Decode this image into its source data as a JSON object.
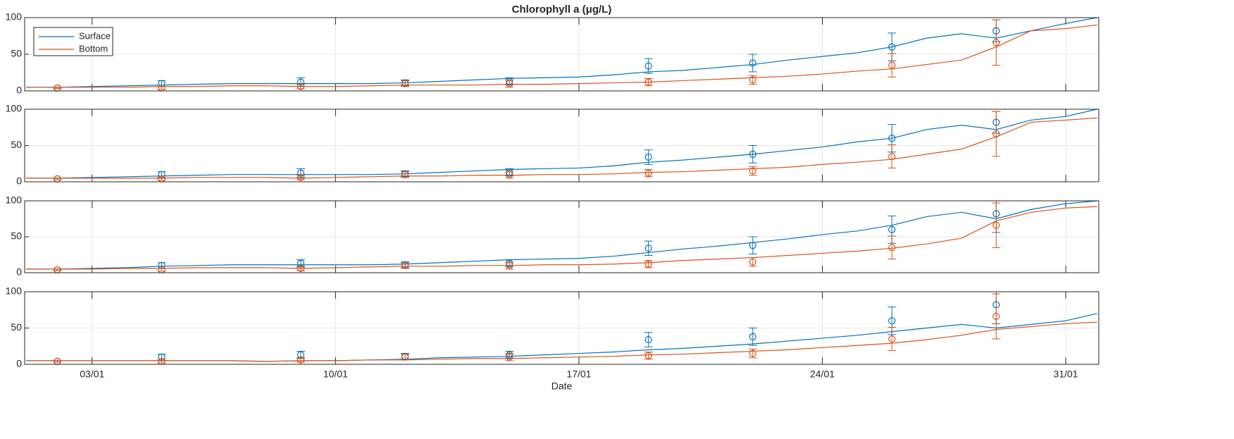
{
  "chart_data": [
    {
      "type": "line",
      "title": "Chlorophyll a (μg/L)",
      "legend": "upper left",
      "grid": true,
      "xlim": [
        1.06,
        31.95
      ],
      "ylim": [
        0,
        100
      ],
      "yticks": [
        0,
        50,
        100
      ],
      "x": [
        1.1,
        2,
        3,
        4,
        5,
        6,
        7,
        8,
        9,
        10,
        11,
        12,
        13,
        14,
        15,
        16,
        17,
        18,
        19,
        20,
        21,
        22,
        23,
        24,
        25,
        26,
        27,
        28,
        29,
        30,
        31,
        31.9
      ],
      "series": [
        {
          "name": "Surface",
          "color": "#0072BD",
          "values": [
            5,
            5,
            6,
            7,
            8,
            9,
            10,
            10,
            10,
            10,
            10,
            11,
            13,
            15,
            17,
            18,
            19,
            22,
            26,
            28,
            32,
            36,
            42,
            47,
            52,
            60,
            72,
            78,
            72,
            82,
            92,
            100
          ]
        },
        {
          "name": "Bottom",
          "color": "#D95319",
          "values": [
            5,
            5,
            5,
            5,
            6,
            6,
            7,
            7,
            6,
            6,
            7,
            8,
            8,
            8,
            9,
            9,
            10,
            11,
            12,
            14,
            16,
            18,
            20,
            23,
            27,
            30,
            36,
            42,
            60,
            82,
            85,
            90
          ]
        }
      ],
      "observations": [
        {
          "color": "#0072BD",
          "x": [
            2,
            5,
            9,
            12,
            15,
            19,
            22,
            26,
            29
          ],
          "values": [
            4,
            10,
            12,
            11,
            13,
            34,
            38,
            60,
            82
          ],
          "errors": [
            1,
            4,
            6,
            4,
            5,
            10,
            12,
            19,
            15
          ]
        },
        {
          "color": "#D95319",
          "x": [
            2,
            5,
            9,
            12,
            15,
            19,
            22,
            26,
            29
          ],
          "values": [
            4,
            4,
            6,
            10,
            10,
            12,
            15,
            35,
            66
          ],
          "errors": [
            1,
            2,
            3,
            4,
            5,
            5,
            6,
            16,
            31
          ]
        }
      ]
    },
    {
      "type": "line",
      "grid": true,
      "xlim": [
        1.06,
        31.95
      ],
      "ylim": [
        0,
        100
      ],
      "yticks": [
        0,
        50,
        100
      ],
      "x": [
        1.1,
        2,
        3,
        4,
        5,
        6,
        7,
        8,
        9,
        10,
        11,
        12,
        13,
        14,
        15,
        16,
        17,
        18,
        19,
        20,
        21,
        22,
        23,
        24,
        25,
        26,
        27,
        28,
        29,
        30,
        31,
        31.9
      ],
      "series": [
        {
          "color": "#0072BD",
          "values": [
            5,
            5,
            6,
            7,
            8,
            9,
            10,
            10,
            10,
            10,
            10,
            11,
            13,
            15,
            17,
            18,
            19,
            22,
            27,
            30,
            34,
            38,
            43,
            48,
            55,
            60,
            72,
            78,
            72,
            85,
            90,
            100
          ]
        },
        {
          "color": "#D95319",
          "values": [
            5,
            5,
            5,
            5,
            5,
            6,
            6,
            6,
            5,
            6,
            7,
            8,
            8,
            9,
            9,
            10,
            10,
            11,
            13,
            14,
            16,
            18,
            20,
            24,
            27,
            31,
            38,
            45,
            62,
            82,
            85,
            88
          ]
        }
      ],
      "observations": [
        {
          "color": "#0072BD",
          "x": [
            2,
            5,
            9,
            12,
            15,
            19,
            22,
            26,
            29
          ],
          "values": [
            4,
            10,
            12,
            11,
            13,
            34,
            38,
            60,
            82
          ],
          "errors": [
            1,
            4,
            6,
            4,
            5,
            10,
            12,
            19,
            15
          ]
        },
        {
          "color": "#D95319",
          "x": [
            2,
            5,
            9,
            12,
            15,
            19,
            22,
            26,
            29
          ],
          "values": [
            4,
            4,
            6,
            10,
            10,
            12,
            15,
            35,
            66
          ],
          "errors": [
            1,
            2,
            3,
            4,
            5,
            5,
            6,
            16,
            31
          ]
        }
      ]
    },
    {
      "type": "line",
      "grid": true,
      "xlim": [
        1.06,
        31.95
      ],
      "ylim": [
        0,
        100
      ],
      "yticks": [
        0,
        50,
        100
      ],
      "x": [
        1.1,
        2,
        3,
        4,
        5,
        6,
        7,
        8,
        9,
        10,
        11,
        12,
        13,
        14,
        15,
        16,
        17,
        18,
        19,
        20,
        21,
        22,
        23,
        24,
        25,
        26,
        27,
        28,
        29,
        30,
        31,
        31.9
      ],
      "series": [
        {
          "color": "#0072BD",
          "values": [
            5,
            5,
            6,
            7,
            9,
            10,
            11,
            11,
            11,
            11,
            11,
            12,
            14,
            16,
            18,
            19,
            20,
            23,
            28,
            33,
            37,
            42,
            47,
            53,
            58,
            66,
            78,
            84,
            75,
            88,
            96,
            100
          ]
        },
        {
          "color": "#D95319",
          "values": [
            5,
            5,
            5,
            6,
            6,
            7,
            7,
            7,
            6,
            7,
            8,
            9,
            9,
            10,
            10,
            11,
            11,
            12,
            14,
            17,
            19,
            21,
            24,
            27,
            30,
            34,
            40,
            48,
            72,
            84,
            90,
            92
          ]
        }
      ],
      "observations": [
        {
          "color": "#0072BD",
          "x": [
            2,
            5,
            9,
            12,
            15,
            19,
            22,
            26,
            29
          ],
          "values": [
            4,
            10,
            13,
            11,
            13,
            34,
            38,
            60,
            82
          ],
          "errors": [
            1,
            4,
            5,
            4,
            5,
            10,
            12,
            19,
            26
          ]
        },
        {
          "color": "#D95319",
          "x": [
            2,
            5,
            9,
            12,
            15,
            19,
            22,
            26,
            29
          ],
          "values": [
            4,
            4,
            6,
            10,
            10,
            12,
            15,
            35,
            66
          ],
          "errors": [
            1,
            2,
            3,
            4,
            5,
            5,
            6,
            16,
            31
          ]
        }
      ]
    },
    {
      "type": "line",
      "grid": true,
      "xlabel": "Date",
      "xlim": [
        1.06,
        31.95
      ],
      "ylim": [
        0,
        100
      ],
      "yticks": [
        0,
        50,
        100
      ],
      "xticks": [
        {
          "value": 3,
          "label": "03/01"
        },
        {
          "value": 10,
          "label": "10/01"
        },
        {
          "value": 17,
          "label": "17/01"
        },
        {
          "value": 24,
          "label": "24/01"
        },
        {
          "value": 31,
          "label": "31/01"
        }
      ],
      "x": [
        1.1,
        2,
        3,
        4,
        5,
        6,
        7,
        8,
        9,
        10,
        11,
        12,
        13,
        14,
        15,
        16,
        17,
        18,
        19,
        20,
        21,
        22,
        23,
        24,
        25,
        26,
        27,
        28,
        29,
        30,
        31,
        31.9
      ],
      "series": [
        {
          "color": "#0072BD",
          "values": [
            5,
            5,
            5,
            5,
            5,
            5,
            5,
            4,
            5,
            5,
            6,
            7,
            9,
            10,
            11,
            13,
            15,
            17,
            20,
            22,
            25,
            28,
            32,
            36,
            40,
            45,
            50,
            55,
            50,
            55,
            60,
            70
          ]
        },
        {
          "color": "#D95319",
          "values": [
            5,
            5,
            5,
            5,
            5,
            5,
            5,
            4,
            5,
            5,
            6,
            6,
            7,
            8,
            8,
            9,
            10,
            11,
            13,
            14,
            16,
            18,
            20,
            23,
            26,
            29,
            34,
            40,
            48,
            52,
            56,
            58
          ]
        }
      ],
      "observations": [
        {
          "color": "#0072BD",
          "x": [
            2,
            5,
            9,
            12,
            15,
            19,
            22,
            26,
            29
          ],
          "values": [
            4,
            10,
            13,
            11,
            13,
            34,
            38,
            60,
            82
          ],
          "errors": [
            1,
            4,
            5,
            4,
            5,
            10,
            12,
            19,
            26
          ]
        },
        {
          "color": "#D95319",
          "x": [
            2,
            5,
            9,
            12,
            15,
            19,
            22,
            26,
            29
          ],
          "values": [
            4,
            4,
            6,
            10,
            10,
            12,
            15,
            35,
            66
          ],
          "errors": [
            1,
            2,
            3,
            4,
            5,
            5,
            6,
            16,
            31
          ]
        }
      ]
    }
  ]
}
